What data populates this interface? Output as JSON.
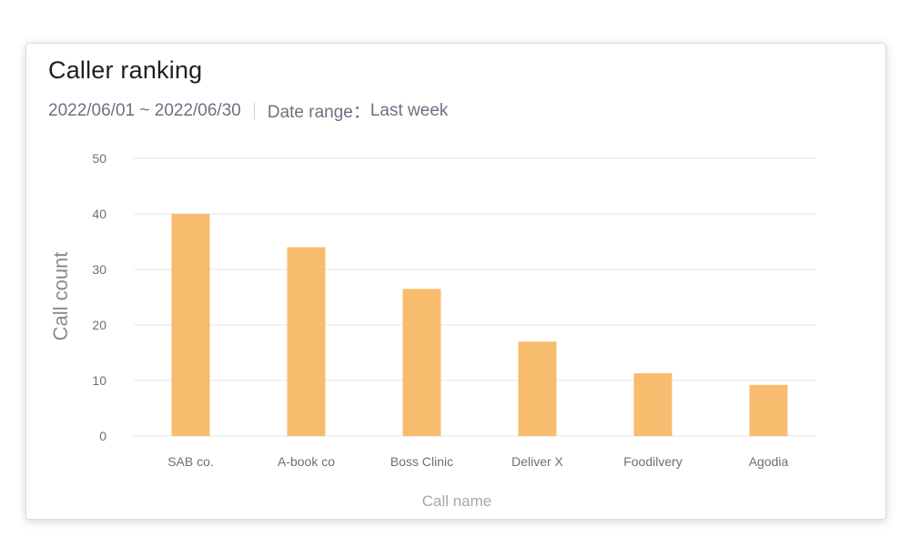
{
  "card": {
    "title": "Caller ranking",
    "date_span": "2022/06/01 ~ 2022/06/30",
    "range_label": "Date range：",
    "range_value": "Last week"
  },
  "chart_data": {
    "type": "bar",
    "categories": [
      "SAB co.",
      "A-book co",
      "Boss  Clinic",
      "Deliver X",
      "Foodilvery",
      "Agodia"
    ],
    "values": [
      40,
      34,
      26.5,
      17,
      11.3,
      9.2
    ],
    "xlabel": "Call name",
    "ylabel": "Call count",
    "ylim": [
      0,
      50
    ],
    "yticks": [
      0,
      10,
      20,
      30,
      40,
      50
    ],
    "grid": true,
    "colors": {
      "bar": "#F8BC6E",
      "grid": "#e6e6e6"
    }
  }
}
